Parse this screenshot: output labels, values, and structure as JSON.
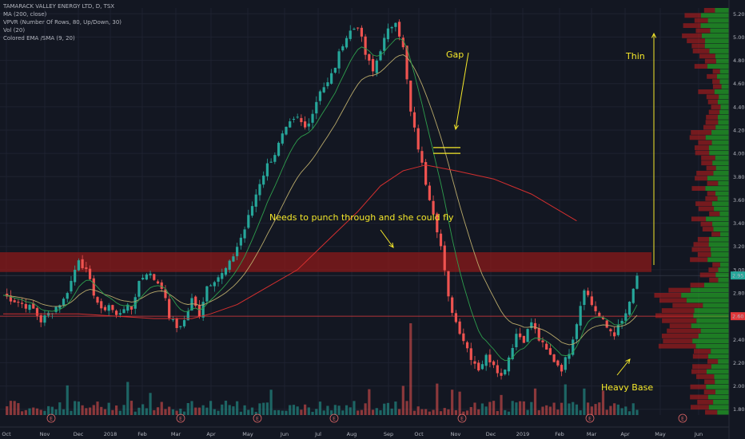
{
  "legend": {
    "symbol": "TAMARACK VALLEY ENERGY LTD, D, TSX",
    "ma": "MA (200, close)",
    "vpvr": "VPVR (Number Of Rows, 80, Up/Down, 30)",
    "vol": "Vol (20)",
    "ema": "Colored EMA /SMA (9, 20)"
  },
  "annotations": {
    "gap": "Gap",
    "thin": "Thin",
    "punch": "Needs to punch through and she could fly",
    "heavy_base": "Heavy Base"
  },
  "price_badges": {
    "current": "2.95",
    "line": "2.60"
  },
  "colors": {
    "background": "#131722",
    "up": "#26a69a",
    "down": "#ef5350",
    "ma200": "#d32f2f",
    "annotation": "#f5e82a",
    "zone": "#8b1a1a",
    "vpvr_up": "#26c026",
    "vpvr_down": "#b71c1c"
  },
  "earnings_marker": "E",
  "chart_data": {
    "type": "candlestick",
    "title": "TAMARACK VALLEY ENERGY LTD, D, TSX",
    "y_ticks": [
      "5.20",
      "5.00",
      "4.80",
      "4.60",
      "4.40",
      "4.20",
      "4.00",
      "3.80",
      "3.60",
      "3.40",
      "3.20",
      "3.00",
      "2.80",
      "2.60",
      "2.40",
      "2.20",
      "2.00",
      "1.80"
    ],
    "ylim": [
      1.75,
      5.25
    ],
    "x_ticks": [
      "Oct",
      "Nov",
      "Dec",
      "2018",
      "Feb",
      "Mar",
      "Apr",
      "May",
      "Jun",
      "Jul",
      "Aug",
      "Sep",
      "Oct",
      "Nov",
      "Dec",
      "2019",
      "Feb",
      "Mar",
      "Apr",
      "May",
      "Jun"
    ],
    "close_path": [
      [
        0,
        2.78
      ],
      [
        4,
        2.72
      ],
      [
        8,
        2.66
      ],
      [
        10,
        2.56
      ],
      [
        12,
        2.62
      ],
      [
        16,
        2.74
      ],
      [
        18,
        2.9
      ],
      [
        20,
        3.1
      ],
      [
        22,
        2.98
      ],
      [
        24,
        2.8
      ],
      [
        26,
        2.64
      ],
      [
        28,
        2.7
      ],
      [
        30,
        2.6
      ],
      [
        32,
        2.68
      ],
      [
        34,
        2.66
      ],
      [
        36,
        2.9
      ],
      [
        38,
        2.98
      ],
      [
        40,
        2.92
      ],
      [
        42,
        2.86
      ],
      [
        44,
        2.6
      ],
      [
        46,
        2.5
      ],
      [
        48,
        2.56
      ],
      [
        50,
        2.74
      ],
      [
        52,
        2.62
      ],
      [
        54,
        2.86
      ],
      [
        56,
        2.92
      ],
      [
        58,
        2.96
      ],
      [
        60,
        3.05
      ],
      [
        62,
        3.2
      ],
      [
        64,
        3.35
      ],
      [
        66,
        3.55
      ],
      [
        68,
        3.75
      ],
      [
        70,
        3.9
      ],
      [
        72,
        4.0
      ],
      [
        74,
        4.15
      ],
      [
        76,
        4.25
      ],
      [
        78,
        4.3
      ],
      [
        80,
        4.22
      ],
      [
        82,
        4.35
      ],
      [
        84,
        4.55
      ],
      [
        86,
        4.6
      ],
      [
        88,
        4.75
      ],
      [
        90,
        4.95
      ],
      [
        92,
        5.05
      ],
      [
        94,
        5.1
      ],
      [
        96,
        4.85
      ],
      [
        98,
        4.7
      ],
      [
        100,
        4.9
      ],
      [
        102,
        5.05
      ],
      [
        104,
        5.15
      ],
      [
        106,
        4.9
      ],
      [
        108,
        4.35
      ],
      [
        110,
        4.05
      ],
      [
        112,
        3.75
      ],
      [
        114,
        3.5
      ],
      [
        116,
        3.2
      ],
      [
        118,
        2.75
      ],
      [
        120,
        2.55
      ],
      [
        122,
        2.4
      ],
      [
        124,
        2.25
      ],
      [
        126,
        2.15
      ],
      [
        128,
        2.25
      ],
      [
        130,
        2.2
      ],
      [
        132,
        2.08
      ],
      [
        134,
        2.25
      ],
      [
        136,
        2.45
      ],
      [
        138,
        2.4
      ],
      [
        140,
        2.55
      ],
      [
        142,
        2.4
      ],
      [
        144,
        2.3
      ],
      [
        146,
        2.22
      ],
      [
        148,
        2.15
      ],
      [
        150,
        2.3
      ],
      [
        152,
        2.55
      ],
      [
        154,
        2.85
      ],
      [
        156,
        2.7
      ],
      [
        158,
        2.6
      ],
      [
        160,
        2.5
      ],
      [
        162,
        2.45
      ],
      [
        164,
        2.55
      ],
      [
        166,
        2.7
      ],
      [
        168,
        2.95
      ]
    ],
    "ma200_path": [
      [
        0,
        2.62
      ],
      [
        20,
        2.62
      ],
      [
        40,
        2.58
      ],
      [
        50,
        2.58
      ],
      [
        55,
        2.62
      ],
      [
        62,
        2.7
      ],
      [
        70,
        2.85
      ],
      [
        78,
        3.0
      ],
      [
        86,
        3.25
      ],
      [
        94,
        3.5
      ],
      [
        100,
        3.72
      ],
      [
        106,
        3.85
      ],
      [
        112,
        3.9
      ],
      [
        120,
        3.85
      ],
      [
        130,
        3.78
      ],
      [
        140,
        3.65
      ],
      [
        152,
        3.42
      ]
    ],
    "zone_top": 3.15,
    "zone_bottom": 2.98,
    "gap_levels": [
      4.05,
      4.0
    ],
    "price_line": 2.6,
    "last_price": 2.95
  }
}
